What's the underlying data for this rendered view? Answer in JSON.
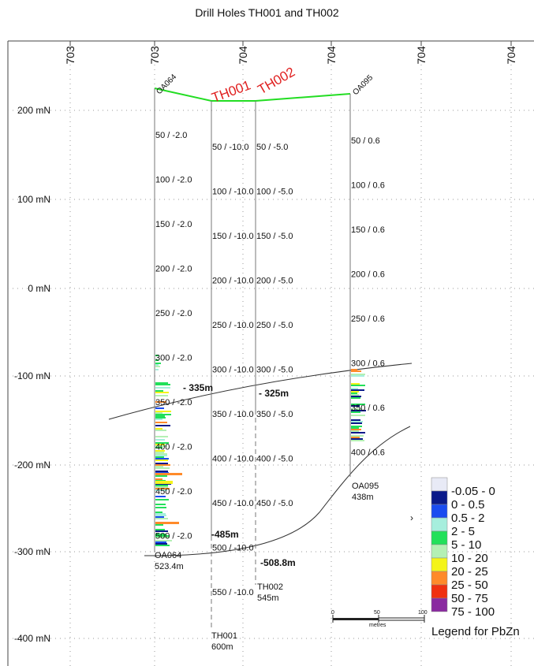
{
  "title": "Drill Holes TH001 and TH002",
  "easting_labels": [
    "703",
    "703",
    "704",
    "704",
    "704",
    "704"
  ],
  "elevation_labels": [
    "200 mN",
    "100 mN",
    "0 mN",
    "-100 mN",
    "-200 mN",
    "-300 mN",
    "-400 mN"
  ],
  "holes": [
    {
      "id": "OA064",
      "label_color": "#111111",
      "depth_labels": [
        "50 / -2.0",
        "100 / -2.0",
        "150 / -2.0",
        "200 / -2.0",
        "250 / -2.0",
        "300 / -2.0",
        "350 / -2.0",
        "400 / -2.0",
        "450 / -2.0",
        "500 / -2.0"
      ],
      "end_name": "OA064",
      "end_depth": "523.4m"
    },
    {
      "id": "TH001",
      "label_color": "#e02020",
      "depth_labels": [
        "50 / -10.0",
        "100 / -10.0",
        "150 / -10.0",
        "200 / -10.0",
        "250 / -10.0",
        "300 / -10.0",
        "350 / -10.0",
        "400 / -10.0",
        "450 / -10.0",
        "500 / -10.0",
        "550 / -10.0"
      ],
      "end_name": "TH001",
      "end_depth": "600m"
    },
    {
      "id": "TH002",
      "label_color": "#e02020",
      "depth_labels": [
        "50 / -5.0",
        "100 / -5.0",
        "150 / -5.0",
        "200 / -5.0",
        "250 / -5.0",
        "300 / -5.0",
        "350 / -5.0",
        "400 / -5.0",
        "450 / -5.0"
      ],
      "end_name": "TH002",
      "end_depth": "545m"
    },
    {
      "id": "OA095",
      "label_color": "#111111",
      "depth_labels": [
        "50 / 0.6",
        "100 / 0.6",
        "150 / 0.6",
        "200 / 0.6",
        "250 / 0.6",
        "300 / 0.6",
        "350 / 0.6",
        "400 / 0.6"
      ],
      "end_name": "OA095",
      "end_depth": "438m"
    }
  ],
  "intercepts": [
    "- 335m",
    "- 325m",
    "-485m",
    "-508.8m"
  ],
  "scale_bar": {
    "ticks": [
      "0",
      "50",
      "100"
    ],
    "unit": "metres"
  },
  "legend": {
    "title": "Legend for PbZn",
    "items": [
      {
        "label": "-0.05 - 0",
        "color": "#e8eaf6"
      },
      {
        "label": "0 - 0.5",
        "color": "#0a1a8a"
      },
      {
        "label": "0.5 - 2",
        "color": "#1a4cf0"
      },
      {
        "label": "2 - 5",
        "color": "#a6eedd"
      },
      {
        "label": "5 - 10",
        "color": "#22e05a"
      },
      {
        "label": "10 - 20",
        "color": "#b4f0b4"
      },
      {
        "label": "20 - 25",
        "color": "#f4f41a"
      },
      {
        "label": "25 - 50",
        "color": "#ff8a2a"
      },
      {
        "label": "50 - 75",
        "color": "#f03010"
      },
      {
        "label": "75 - 100",
        "color": "#8a2aa0"
      }
    ]
  }
}
